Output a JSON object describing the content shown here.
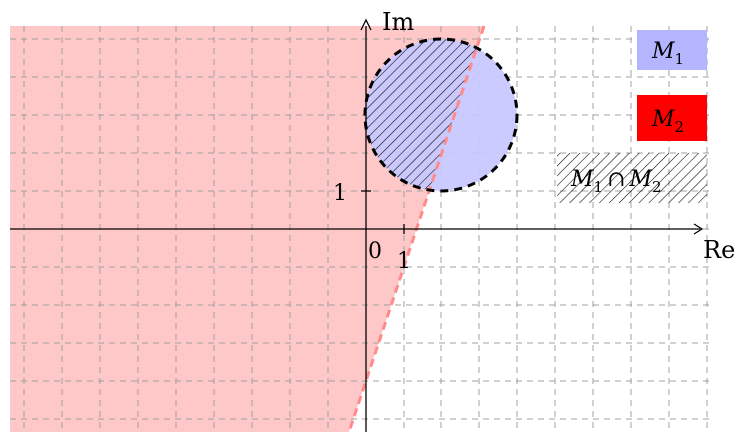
{
  "axes": {
    "x_label": "Re",
    "y_label": "Im",
    "origin_label": "0",
    "x_tick_label": "1",
    "y_tick_label": "1"
  },
  "regions": {
    "M1": {
      "type": "disk",
      "center": [
        2,
        3
      ],
      "radius": 2,
      "fill": "#c8c8ff",
      "border": "dashed-black"
    },
    "M2": {
      "type": "half-plane",
      "boundary_through": [
        [
          -0.5,
          -5.3
        ],
        [
          3.2,
          5.3
        ]
      ],
      "side": "left",
      "fill": "#ffc8c8"
    },
    "intersection": {
      "fill": "hatched"
    }
  },
  "legend": {
    "items": [
      {
        "symbol": "M",
        "subscript": "1",
        "swatch": "#b4b4ff"
      },
      {
        "symbol": "M",
        "subscript": "2",
        "swatch": "#ff0000"
      },
      {
        "symbol": "M",
        "subscript": "1",
        "operator": "∩",
        "symbol2": "M",
        "subscript2": "2",
        "swatch": "hatch"
      }
    ]
  },
  "colors": {
    "grid": "#a0a0a0",
    "m1_fill": "#c8c8ff",
    "m2_fill": "#ffc8c8",
    "m2_border": "#ff8a8a",
    "legend_m1": "#b4b4ff",
    "legend_m2": "#ff0000"
  }
}
